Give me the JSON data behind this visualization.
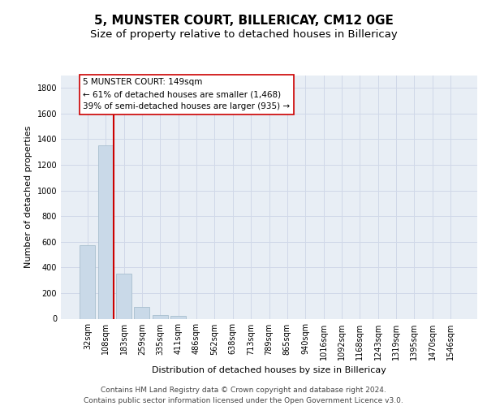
{
  "title": "5, MUNSTER COURT, BILLERICAY, CM12 0GE",
  "subtitle": "Size of property relative to detached houses in Billericay",
  "xlabel": "Distribution of detached houses by size in Billericay",
  "ylabel": "Number of detached properties",
  "bar_labels": [
    "32sqm",
    "108sqm",
    "183sqm",
    "259sqm",
    "335sqm",
    "411sqm",
    "486sqm",
    "562sqm",
    "638sqm",
    "713sqm",
    "789sqm",
    "865sqm",
    "940sqm",
    "1016sqm",
    "1092sqm",
    "1168sqm",
    "1243sqm",
    "1319sqm",
    "1395sqm",
    "1470sqm",
    "1546sqm"
  ],
  "bar_values": [
    575,
    1350,
    350,
    90,
    30,
    20,
    0,
    0,
    0,
    0,
    0,
    0,
    0,
    0,
    0,
    0,
    0,
    0,
    0,
    0,
    0
  ],
  "bar_color": "#c9d9e8",
  "bar_edge_color": "#a8bece",
  "vline_x_idx": 1,
  "vline_color": "#cc0000",
  "annotation_text": "5 MUNSTER COURT: 149sqm\n← 61% of detached houses are smaller (1,468)\n39% of semi-detached houses are larger (935) →",
  "annotation_box_color": "#ffffff",
  "annotation_box_edge": "#cc0000",
  "ylim": [
    0,
    1900
  ],
  "yticks": [
    0,
    200,
    400,
    600,
    800,
    1000,
    1200,
    1400,
    1600,
    1800
  ],
  "grid_color": "#d0d8e8",
  "background_color": "#e8eef5",
  "footer_line1": "Contains HM Land Registry data © Crown copyright and database right 2024.",
  "footer_line2": "Contains public sector information licensed under the Open Government Licence v3.0.",
  "title_fontsize": 11,
  "subtitle_fontsize": 9.5,
  "axis_label_fontsize": 8,
  "tick_fontsize": 7,
  "annotation_fontsize": 7.5,
  "footer_fontsize": 6.5
}
